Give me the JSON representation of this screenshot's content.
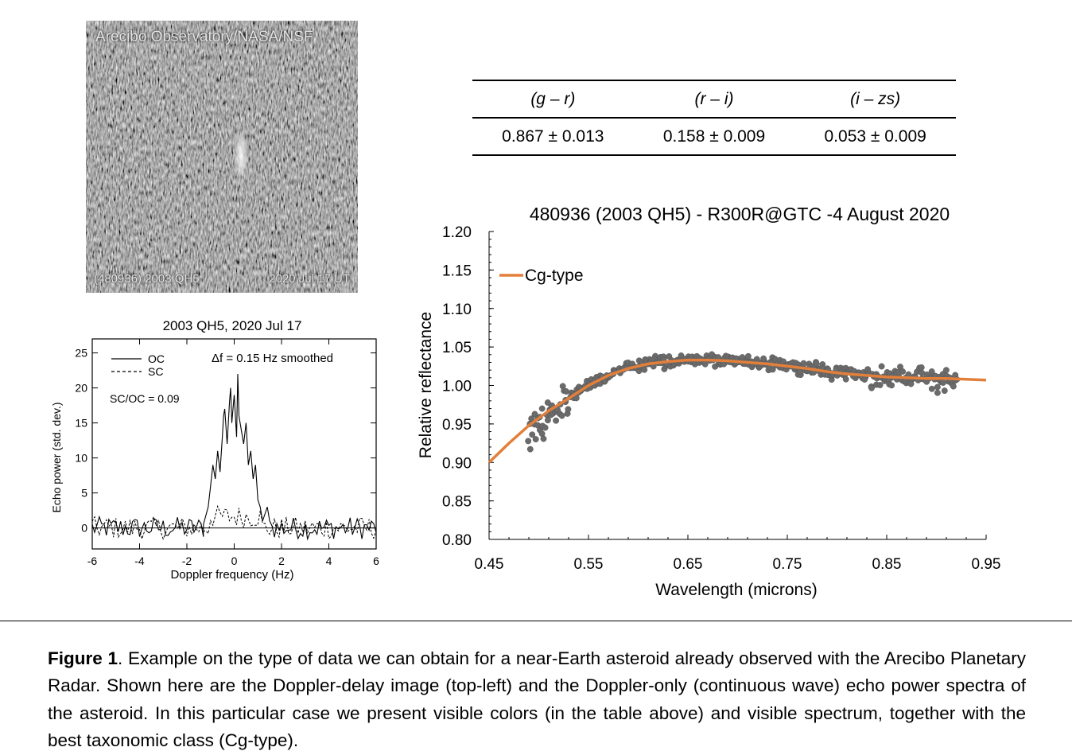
{
  "radar_image": {
    "credit": "Arecibo Observatory/NASA/NSF",
    "target": "(480936) 2003 QH5",
    "date": "2020 Jul 17 UT"
  },
  "colors_table": {
    "headers": [
      "(g – r)",
      "(r – i)",
      "(i – zs)"
    ],
    "values": [
      "0.867 ± 0.013",
      "0.158 ± 0.009",
      "0.053 ± 0.009"
    ]
  },
  "chart_data": [
    {
      "type": "line",
      "title": "2003 QH5, 2020 Jul 17",
      "xlabel": "Doppler frequency (Hz)",
      "ylabel": "Echo power (std. dev.)",
      "xlim": [
        -6,
        6
      ],
      "ylim": [
        -3,
        27
      ],
      "xticks": [
        "-6",
        "-4",
        "-2",
        "0",
        "2",
        "4",
        "6"
      ],
      "yticks": [
        "0",
        "5",
        "10",
        "15",
        "20",
        "25"
      ],
      "legend": {
        "oc": "OC",
        "sc": "SC",
        "placement": "top-left"
      },
      "annotations": [
        "Δf = 0.15 Hz smoothed",
        "SC/OC = 0.09"
      ],
      "series": [
        {
          "name": "OC",
          "x": [
            -1.3,
            -1.1,
            -1.0,
            -0.9,
            -0.8,
            -0.7,
            -0.6,
            -0.5,
            -0.45,
            -0.4,
            -0.3,
            -0.2,
            -0.15,
            -0.1,
            0.0,
            0.1,
            0.15,
            0.2,
            0.3,
            0.4,
            0.5,
            0.6,
            0.7,
            0.8,
            0.9,
            1.0,
            1.1,
            1.2,
            1.3,
            1.4,
            1.5
          ],
          "y": [
            0.5,
            3,
            6,
            9,
            7,
            11,
            8,
            13,
            16,
            17,
            12,
            18,
            20,
            15,
            19,
            13,
            22,
            16,
            14,
            12,
            15,
            9,
            11,
            7,
            9,
            4,
            3,
            1,
            2,
            3,
            1
          ]
        },
        {
          "name": "SC",
          "x": [
            -1.0,
            -0.5,
            0.0,
            0.5,
            1.0
          ],
          "y": [
            1.0,
            1.8,
            2.2,
            1.5,
            1.0
          ]
        }
      ]
    },
    {
      "type": "scatter",
      "title": "480936 (2003 QH5) - R300R@GTC -4 August 2020",
      "xlabel": "Wavelength (microns)",
      "ylabel": "Relative reflectance",
      "xlim": [
        0.45,
        0.95
      ],
      "ylim": [
        0.8,
        1.2
      ],
      "xticks": [
        "0.45",
        "0.55",
        "0.65",
        "0.75",
        "0.85",
        "0.95"
      ],
      "yticks": [
        "0.80",
        "0.85",
        "0.90",
        "0.95",
        "1.00",
        "1.05",
        "1.10",
        "1.15",
        "1.20"
      ],
      "legend": {
        "label": "Cg-type",
        "placement": "top-left"
      },
      "colors": {
        "points": "#6b6b6b",
        "model": "#e27f3b"
      },
      "model_curve": {
        "name": "Cg-type",
        "x": [
          0.45,
          0.47,
          0.49,
          0.51,
          0.53,
          0.55,
          0.57,
          0.59,
          0.61,
          0.63,
          0.65,
          0.67,
          0.69,
          0.71,
          0.73,
          0.75,
          0.77,
          0.79,
          0.81,
          0.83,
          0.85,
          0.87,
          0.89,
          0.91,
          0.93,
          0.95
        ],
        "y": [
          0.9,
          0.925,
          0.948,
          0.967,
          0.983,
          1.0,
          1.013,
          1.022,
          1.028,
          1.031,
          1.033,
          1.033,
          1.032,
          1.03,
          1.028,
          1.025,
          1.022,
          1.018,
          1.015,
          1.013,
          1.011,
          1.01,
          1.009,
          1.009,
          1.008,
          1.007
        ]
      },
      "points_summary": {
        "x_range": [
          0.49,
          0.92
        ],
        "count_approx": 420
      }
    }
  ],
  "caption": {
    "label": "Figure 1",
    "text": ". Example on the type of data we can obtain for a near-Earth asteroid already observed with the Arecibo Planetary Radar. Shown here are the Doppler-delay image (top-left) and the Doppler-only (continuous wave) echo power spectra of the asteroid. In this particular case we present visible colors (in the table above) and visible spectrum, together with the best taxonomic class (Cg-type)."
  }
}
